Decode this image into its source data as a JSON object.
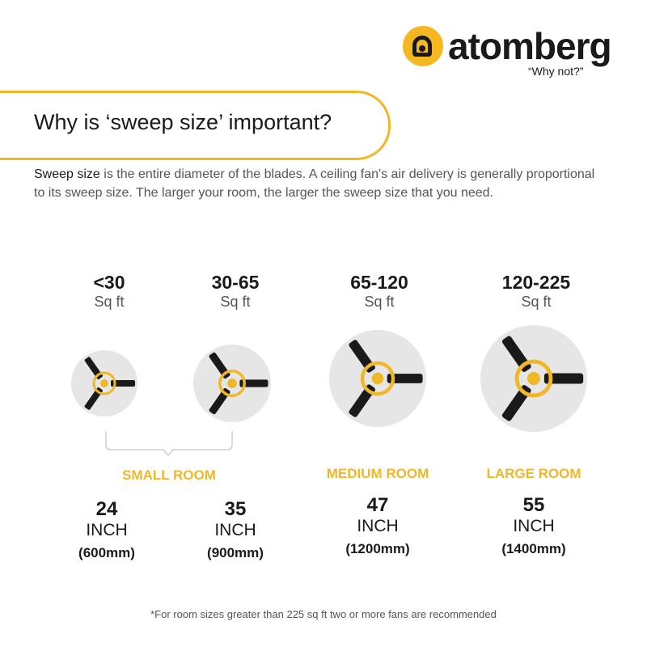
{
  "brand": {
    "name": "atomberg",
    "tagline": "“Why not?”",
    "color": "#f5b820"
  },
  "header": {
    "title": "Why is ‘sweep size’ important?"
  },
  "intro": {
    "bold": "Sweep size",
    "text": " is the entire diameter of the blades. A ceiling fan's air delivery is generally proportional to its sweep size. The larger your room, the larger the sweep size that you need."
  },
  "fans": [
    {
      "range": "<30",
      "unit": "Sq ft",
      "size": "24",
      "inch": "INCH",
      "mm": "(600mm)"
    },
    {
      "range": "30-65",
      "unit": "Sq ft",
      "size": "35",
      "inch": "INCH",
      "mm": "(900mm)"
    },
    {
      "range": "65-120",
      "unit": "Sq ft",
      "size": "47",
      "inch": "INCH",
      "mm": "(1200mm)"
    },
    {
      "range": "120-225",
      "unit": "Sq ft",
      "size": "55",
      "inch": "INCH",
      "mm": "(1400mm)"
    }
  ],
  "rooms": {
    "small": "SMALL ROOM",
    "medium": "MEDIUM ROOM",
    "large": "LARGE ROOM"
  },
  "footnote": "*For room sizes greater than 225 sq ft two or more fans are recommended",
  "colors": {
    "accent": "#f0b828",
    "circle": "#e6e6e6",
    "blade": "#1a1a1a"
  }
}
